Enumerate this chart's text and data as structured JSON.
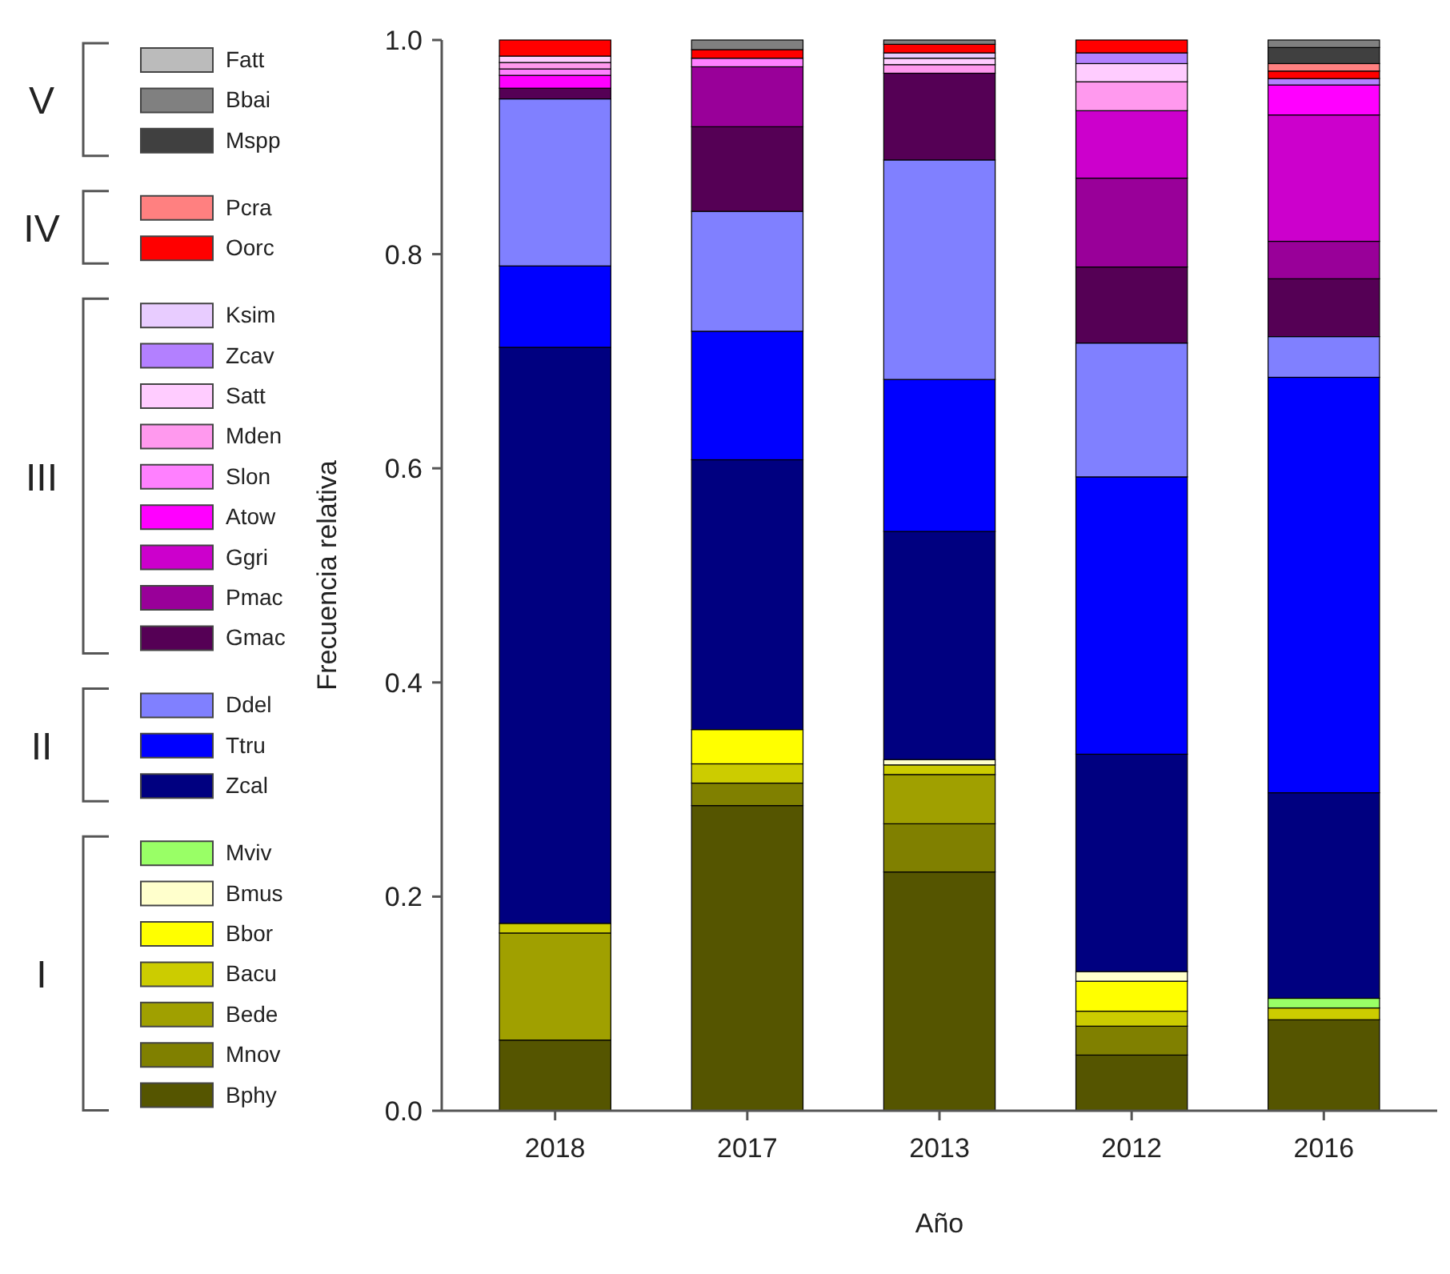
{
  "chart_data": {
    "type": "bar",
    "stacked": true,
    "xlabel": "Año",
    "ylabel": "Frecuencia relativa",
    "categories": [
      "2018",
      "2017",
      "2013",
      "2012",
      "2016"
    ],
    "ylim": [
      0,
      1
    ],
    "yticks": [
      {
        "value": 0,
        "label": "0.0"
      },
      {
        "value": 0.2,
        "label": "0.2"
      },
      {
        "value": 0.4,
        "label": "0.4"
      },
      {
        "value": 0.6,
        "label": "0.6"
      },
      {
        "value": 0.8,
        "label": "0.8"
      },
      {
        "value": 1,
        "label": "1.0"
      }
    ],
    "grid": false,
    "legend": "left",
    "annotations": [
      "V",
      "IV",
      "III",
      "II",
      "I"
    ],
    "series": [
      {
        "name": "Bphy",
        "color": "#555500",
        "values": [
          0.066,
          0.285,
          0.223,
          0.052,
          0.085
        ]
      },
      {
        "name": "Mnov",
        "color": "#808000",
        "values": [
          0,
          0.021,
          0.045,
          0.027,
          0
        ]
      },
      {
        "name": "Bede",
        "color": "#a0a000",
        "values": [
          0.1,
          0,
          0.046,
          0,
          0
        ]
      },
      {
        "name": "Bacu",
        "color": "#cccc00",
        "values": [
          0.009,
          0.018,
          0.009,
          0.014,
          0.011
        ]
      },
      {
        "name": "Bbor",
        "color": "#ffff00",
        "values": [
          0,
          0.032,
          0,
          0.028,
          0
        ]
      },
      {
        "name": "Bmus",
        "color": "#ffffcc",
        "values": [
          0,
          0,
          0.005,
          0.009,
          0
        ]
      },
      {
        "name": "Mviv",
        "color": "#99ff66",
        "values": [
          0,
          0,
          0,
          0,
          0.009
        ]
      },
      {
        "name": "Zcal",
        "color": "#000080",
        "values": [
          0.538,
          0.252,
          0.213,
          0.203,
          0.192
        ]
      },
      {
        "name": "Ttru",
        "color": "#0000ff",
        "values": [
          0.076,
          0.12,
          0.142,
          0.259,
          0.388
        ]
      },
      {
        "name": "Ddel",
        "color": "#8080ff",
        "values": [
          0.156,
          0.112,
          0.205,
          0.125,
          0.038
        ]
      },
      {
        "name": "Gmac",
        "color": "#550055",
        "values": [
          0.01,
          0.079,
          0.081,
          0.071,
          0.054
        ]
      },
      {
        "name": "Pmac",
        "color": "#990099",
        "values": [
          0,
          0.056,
          0,
          0.083,
          0.035
        ]
      },
      {
        "name": "Ggri",
        "color": "#cc00cc",
        "values": [
          0,
          0,
          0,
          0.063,
          0.118
        ]
      },
      {
        "name": "Atow",
        "color": "#ff00ff",
        "values": [
          0.012,
          0,
          0,
          0,
          0.028
        ]
      },
      {
        "name": "Slon",
        "color": "#ff80ff",
        "values": [
          0.006,
          0.008,
          0,
          0,
          0
        ]
      },
      {
        "name": "Mden",
        "color": "#ff99ee",
        "values": [
          0.006,
          0,
          0.008,
          0.027,
          0
        ]
      },
      {
        "name": "Satt",
        "color": "#ffccff",
        "values": [
          0.006,
          0,
          0.006,
          0.017,
          0
        ]
      },
      {
        "name": "Zcav",
        "color": "#b380ff",
        "values": [
          0,
          0,
          0,
          0.01,
          0.006
        ]
      },
      {
        "name": "Ksim",
        "color": "#e8ccff",
        "values": [
          0,
          0,
          0.005,
          0,
          0
        ]
      },
      {
        "name": "Oorc",
        "color": "#ff0000",
        "values": [
          0.015,
          0.008,
          0.008,
          0.012,
          0.007
        ]
      },
      {
        "name": "Pcra",
        "color": "#ff8080",
        "values": [
          0,
          0,
          0,
          0,
          0.007
        ]
      },
      {
        "name": "Mspp",
        "color": "#404040",
        "values": [
          0,
          0,
          0,
          0,
          0.015
        ]
      },
      {
        "name": "Bbai",
        "color": "#808080",
        "values": [
          0,
          0.009,
          0.004,
          0,
          0.007
        ]
      },
      {
        "name": "Fatt",
        "color": "#bbbbbb",
        "values": [
          0,
          0,
          0,
          0,
          0
        ]
      }
    ]
  }
}
